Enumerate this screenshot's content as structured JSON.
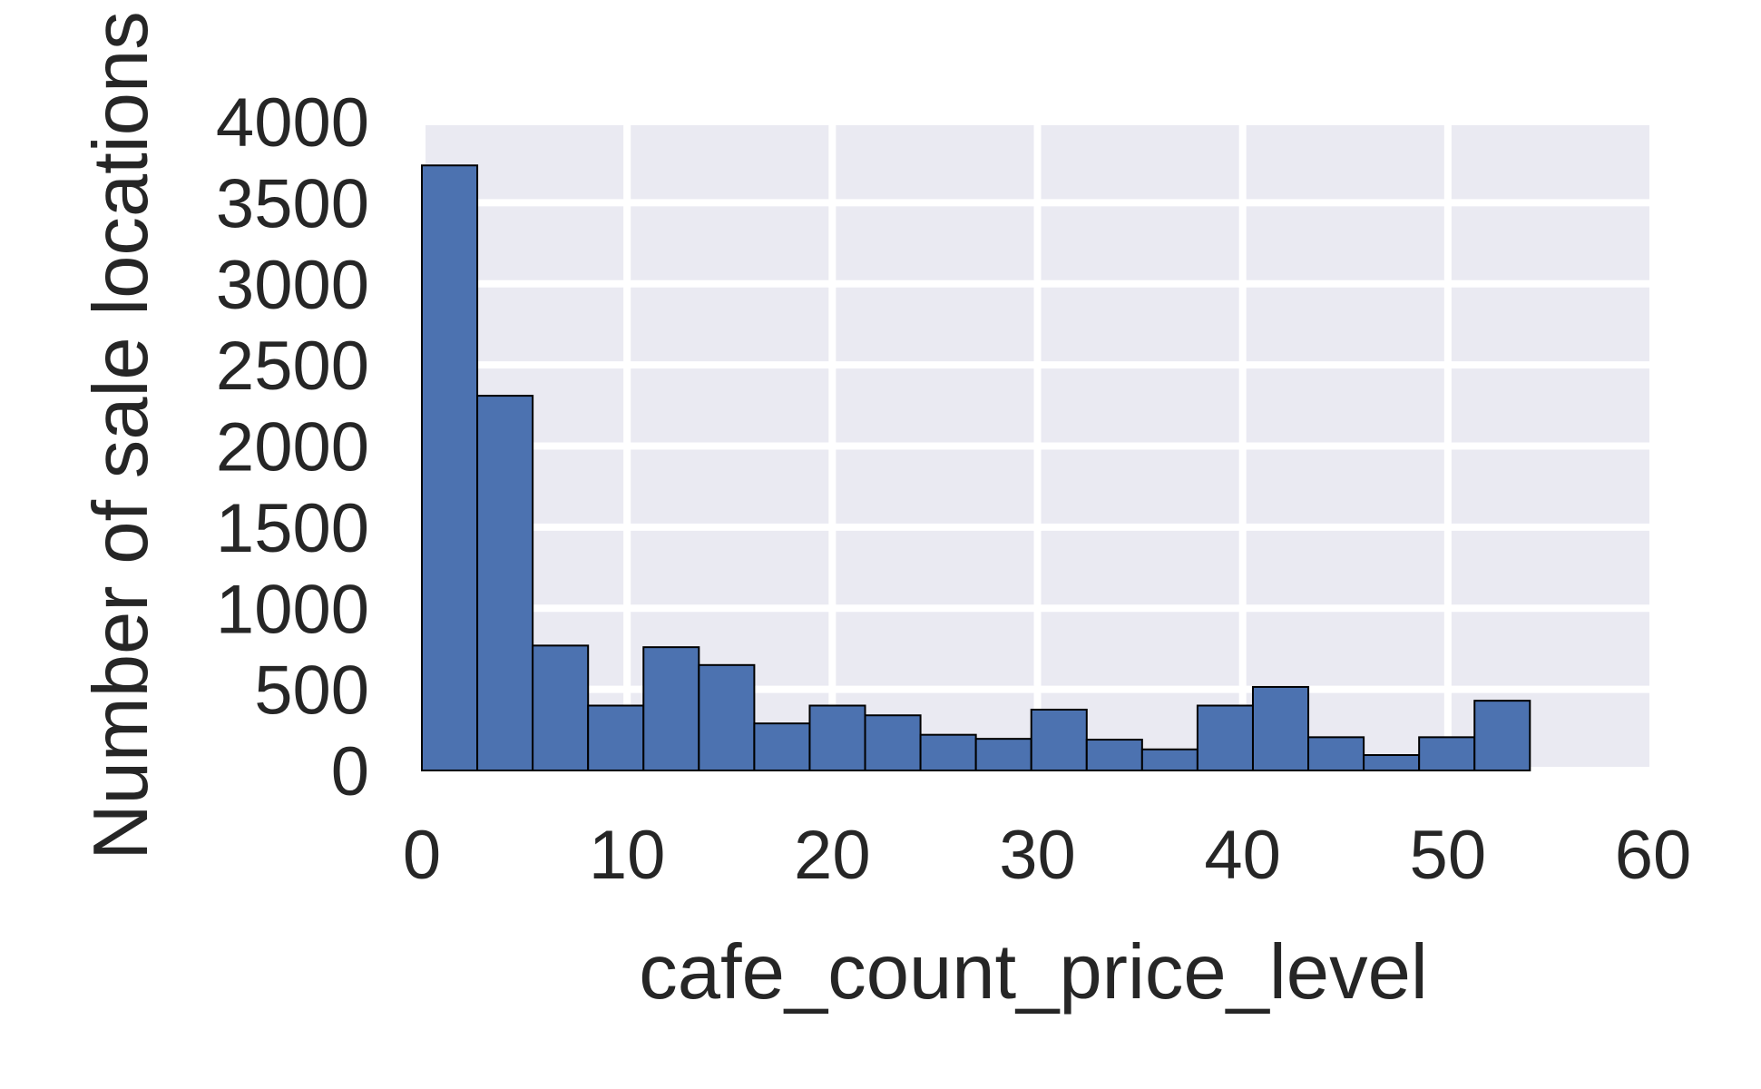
{
  "chart_data": {
    "type": "bar",
    "xlabel": "cafe_count_price_level",
    "ylabel": "Number of sale locations",
    "xlim": [
      0,
      60
    ],
    "ylim": [
      0,
      4000
    ],
    "xticks": [
      "0",
      "10",
      "20",
      "30",
      "40",
      "50",
      "60"
    ],
    "yticks": [
      "0",
      "500",
      "1000",
      "1500",
      "2000",
      "2500",
      "3000",
      "3500",
      "4000"
    ],
    "grid": true,
    "bin_edges": [
      0,
      2.7,
      5.4,
      8.1,
      10.8,
      13.5,
      16.2,
      18.9,
      21.6,
      24.3,
      27.0,
      29.7,
      32.4,
      35.1,
      37.8,
      40.5,
      43.2,
      45.9,
      48.6,
      51.3,
      54.0
    ],
    "values": [
      3730,
      2310,
      770,
      400,
      760,
      650,
      290,
      400,
      340,
      220,
      195,
      375,
      190,
      130,
      400,
      515,
      205,
      95,
      205,
      430
    ],
    "colors": {
      "bar_fill": "#4c72b0",
      "bar_edge": "#000000",
      "plot_background": "#eaeaf2",
      "grid": "#ffffff",
      "text": "#262626"
    }
  }
}
